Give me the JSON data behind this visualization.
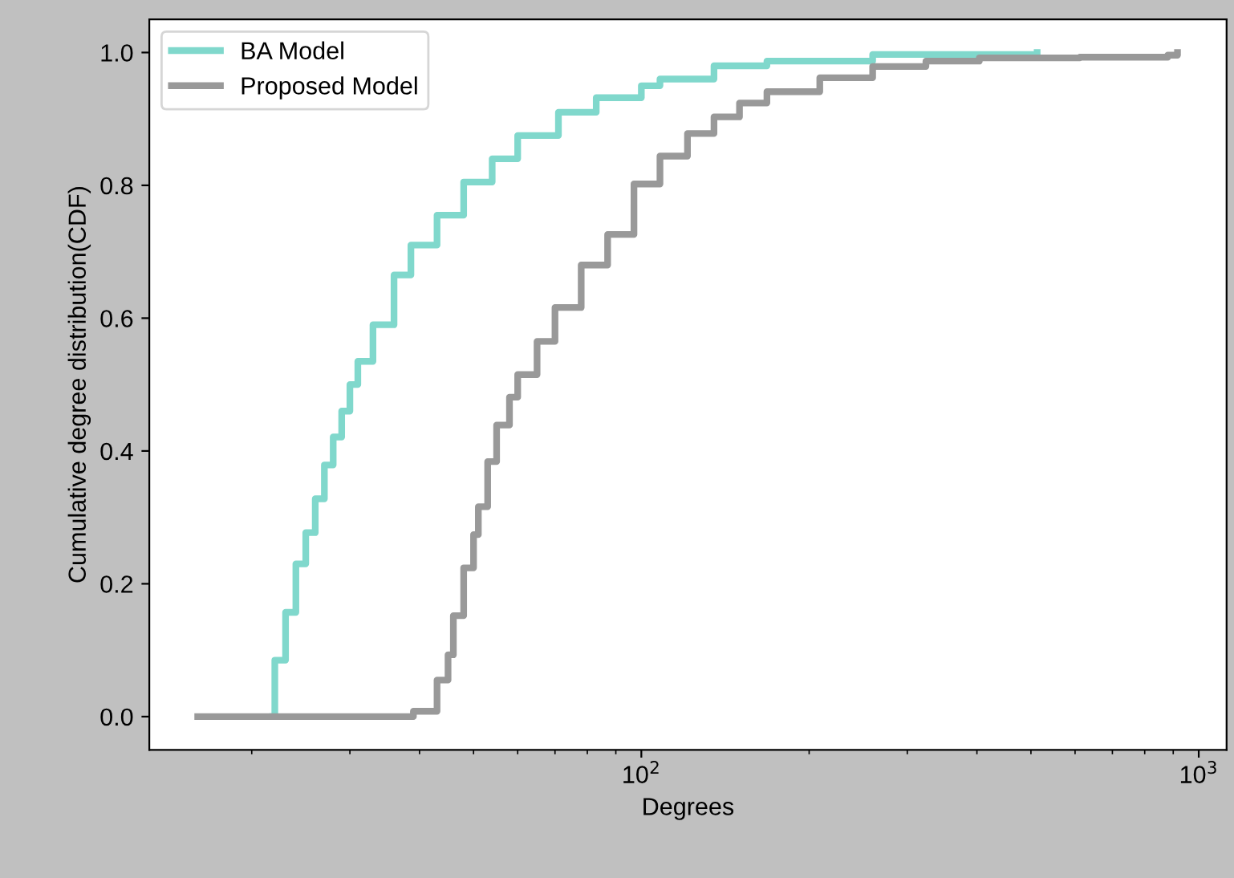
{
  "chart_data": {
    "type": "step",
    "xlabel": "Degrees",
    "ylabel": "Cumulative degree distribution(CDF)",
    "series": [
      {
        "name": "BA Model",
        "color": "#80d8cc",
        "x": [
          21.8,
          22,
          23,
          24,
          25,
          26,
          27,
          28,
          29,
          30,
          31,
          33,
          36,
          38.6,
          43,
          48,
          54,
          60,
          71,
          83,
          100,
          108,
          135,
          168,
          260,
          513
        ],
        "values": [
          0,
          0.085,
          0.157,
          0.23,
          0.277,
          0.328,
          0.379,
          0.421,
          0.46,
          0.5,
          0.535,
          0.59,
          0.665,
          0.71,
          0.755,
          0.805,
          0.84,
          0.875,
          0.91,
          0.932,
          0.95,
          0.96,
          0.98,
          0.987,
          0.997,
          1.0
        ]
      },
      {
        "name": "Proposed Model",
        "color": "#999999",
        "x": [
          16,
          39,
          43,
          45,
          46,
          48,
          50,
          51,
          53,
          55,
          58,
          60,
          65,
          70,
          78,
          87,
          97,
          108,
          121,
          135,
          150,
          168,
          209,
          260,
          324,
          404,
          612,
          880,
          916
        ],
        "values": [
          0,
          0.008,
          0.055,
          0.093,
          0.152,
          0.224,
          0.274,
          0.316,
          0.384,
          0.439,
          0.481,
          0.515,
          0.565,
          0.616,
          0.68,
          0.726,
          0.802,
          0.844,
          0.878,
          0.903,
          0.924,
          0.941,
          0.962,
          0.979,
          0.987,
          0.992,
          0.993,
          0.996,
          1.0
        ]
      }
    ],
    "log": "x",
    "xlim": [
      13.1,
      1122
    ],
    "ylim": [
      -0.05,
      1.05
    ],
    "xticks": [
      {
        "value": 100,
        "label": "10$^{2}$"
      },
      {
        "value": 1000,
        "label": "10$^{3}$"
      }
    ],
    "yticks": [
      {
        "value": 0,
        "label": "0.0"
      },
      {
        "value": 0.2,
        "label": "0.2"
      },
      {
        "value": 0.4,
        "label": "0.4"
      },
      {
        "value": 0.6,
        "label": "0.6"
      },
      {
        "value": 0.8,
        "label": "0.8"
      },
      {
        "value": 1.0,
        "label": "1.0"
      }
    ],
    "grid": false,
    "legend": "top left"
  }
}
